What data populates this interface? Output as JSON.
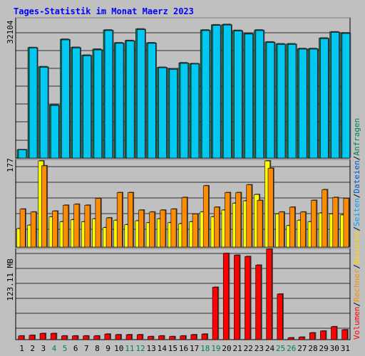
{
  "chart_data": {
    "type": "bar",
    "title": "Tages-Statistik im Monat Maerz 2023",
    "categories": [
      "1",
      "2",
      "3",
      "4",
      "5",
      "6",
      "7",
      "8",
      "9",
      "10",
      "11",
      "12",
      "13",
      "14",
      "15",
      "16",
      "17",
      "18",
      "19",
      "20",
      "21",
      "22",
      "23",
      "24",
      "25",
      "26",
      "27",
      "28",
      "29",
      "30",
      "31"
    ],
    "weekend_days": [
      "4",
      "5",
      "11",
      "12",
      "18",
      "19",
      "25",
      "26"
    ],
    "panels": [
      {
        "id": "hits-files",
        "max_label": "32104",
        "ylim": [
          0,
          34000
        ],
        "series": [
          {
            "name": "Anfragen",
            "color": "#00805c",
            "values": [
              2050,
              26800,
              22150,
              12880,
              28800,
              26850,
              24950,
              26400,
              31050,
              27950,
              28500,
              31300,
              27950,
              22000,
              21650,
              23100,
              22900,
              31050,
              32300,
              32400,
              30950,
              30200,
              31050,
              28150,
              27700,
              27700,
              26550,
              26550,
              29100,
              30600,
              30350
            ]
          },
          {
            "name": "Dateien",
            "color": "#00c8f0",
            "values": [
              2000,
              26700,
              22000,
              12750,
              28650,
              26700,
              24800,
              26200,
              30900,
              27800,
              28350,
              31150,
              27800,
              21900,
              21500,
              22950,
              22800,
              30900,
              32150,
              32250,
              30800,
              30050,
              30900,
              28000,
              27550,
              27550,
              26400,
              26400,
              28950,
              30450,
              30200
            ]
          }
        ]
      },
      {
        "id": "pages-visits",
        "max_label": "177",
        "ylim": [
          0,
          180
        ],
        "series": [
          {
            "name": "Seiten",
            "color": "#00a0ff",
            "values": [
              0,
              0,
              0,
              0,
              0,
              0,
              0,
              0,
              0,
              0,
              0,
              0,
              0,
              0,
              0,
              0,
              0,
              0,
              0,
              0,
              0,
              0,
              0,
              0,
              0,
              0,
              0,
              0,
              0,
              0,
              0
            ]
          },
          {
            "name": "Besuche",
            "color": "#ffff00",
            "values": [
              38,
              45,
              177,
              62,
              52,
              56,
              52,
              58,
              40,
              55,
              46,
              54,
              50,
              58,
              50,
              48,
              52,
              72,
              62,
              76,
              90,
              95,
              108,
              177,
              68,
              44,
              55,
              52,
              70,
              68,
              66
            ]
          },
          {
            "name": "Rechner",
            "color": "#ff8c00",
            "values": [
              78,
              72,
              167,
              74,
              86,
              88,
              86,
              100,
              60,
              112,
              112,
              76,
              72,
              76,
              78,
              102,
              68,
              126,
              82,
              112,
              112,
              128,
              96,
              162,
              72,
              82,
              72,
              96,
              118,
              102,
              100
            ]
          }
        ]
      },
      {
        "id": "volume",
        "max_label": "123.11 MB",
        "ylim": [
          0,
          148
        ],
        "series": [
          {
            "name": "Volumen",
            "color": "#ff0000",
            "values": [
              6,
              7,
              10,
              10,
              6,
              6,
              6,
              6,
              9,
              8,
              8,
              8,
              5,
              6,
              5,
              6,
              8,
              9,
              85,
              140,
              137,
              135,
              121,
              147,
              74,
              3,
              4,
              11,
              14,
              21,
              16
            ]
          }
        ]
      }
    ],
    "legend": {
      "placement": "right-vertical",
      "items": [
        {
          "label": "Volumen",
          "color": "#ff0000"
        },
        {
          "label": "Rechner",
          "color": "#ff8c00"
        },
        {
          "label": "Besuche",
          "color": "#ffd700"
        },
        {
          "label": "Seiten",
          "color": "#00a0ff"
        },
        {
          "label": "Dateien",
          "color": "#0055cc"
        },
        {
          "label": "Anfragen",
          "color": "#00805c"
        }
      ],
      "separator": "/"
    },
    "colors": {
      "background": "#c0c0c0",
      "title": "#0000ff",
      "weekday_label": "#000000",
      "weekend_label": "#00805c"
    }
  }
}
